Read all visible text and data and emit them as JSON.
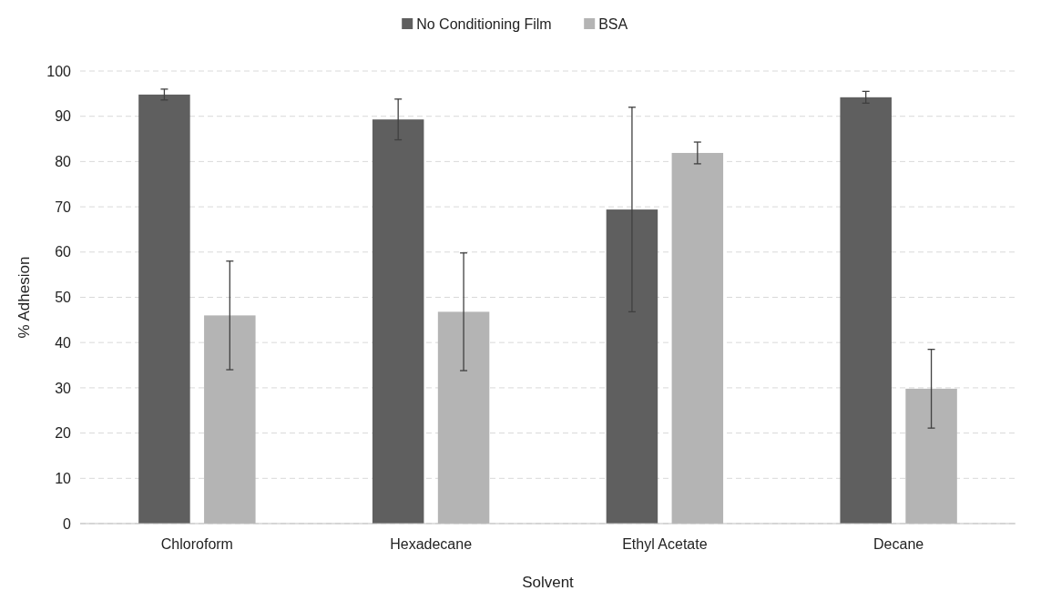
{
  "chart_data": {
    "type": "bar",
    "xlabel": "Solvent",
    "ylabel": "% Adhesion",
    "categories": [
      "Chloroform",
      "Hexadecane",
      "Ethyl Acetate",
      "Decane"
    ],
    "series": [
      {
        "name": "No Conditioning Film",
        "color": "#5f5f5f",
        "values": [
          94.8,
          89.3,
          69.4,
          94.2
        ],
        "errors": [
          1.2,
          4.5,
          22.6,
          1.3
        ]
      },
      {
        "name": "BSA",
        "color": "#b4b4b4",
        "values": [
          46,
          46.8,
          81.9,
          29.8
        ],
        "errors": [
          12,
          13,
          2.4,
          8.7
        ]
      }
    ],
    "ylim": [
      0,
      100
    ],
    "yticks": [
      0,
      10,
      20,
      30,
      40,
      50,
      60,
      70,
      80,
      90,
      100
    ],
    "grid": "y",
    "legend": "top"
  }
}
